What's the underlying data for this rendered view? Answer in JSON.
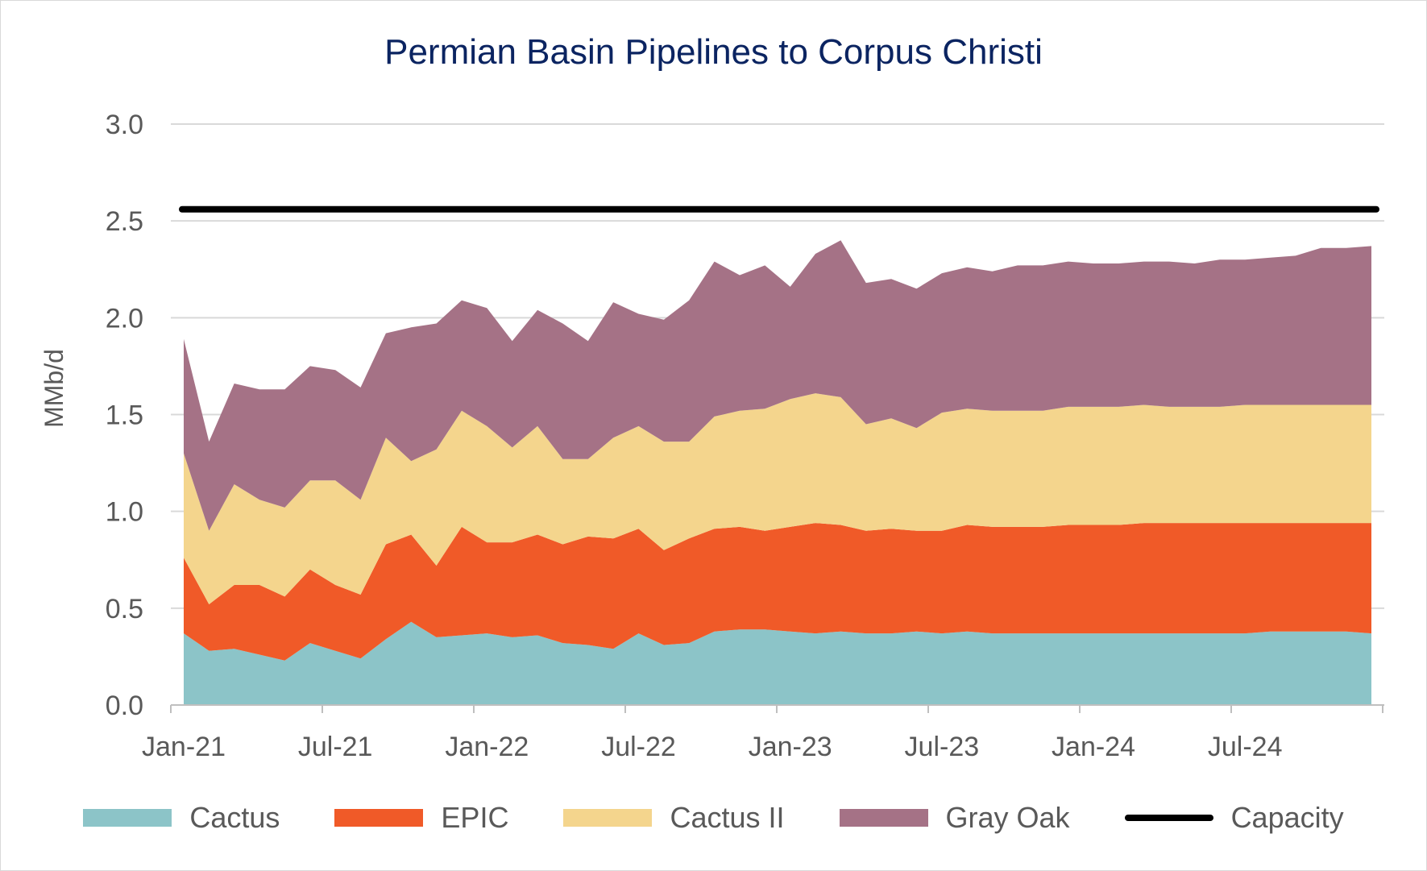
{
  "chart_data": {
    "type": "area",
    "stacked": true,
    "title": "Permian Basin Pipelines to Corpus Christi",
    "xlabel": "",
    "ylabel": "MMb/d",
    "ylim": [
      0,
      3.0
    ],
    "yticks": [
      "0.0",
      "0.5",
      "1.0",
      "1.5",
      "2.0",
      "2.5",
      "3.0"
    ],
    "x_tick_labels": [
      "Jan-21",
      "Jul-21",
      "Jan-22",
      "Jul-22",
      "Jan-23",
      "Jul-23",
      "Jan-24",
      "Jul-24"
    ],
    "x": [
      "2021-01",
      "2021-02",
      "2021-03",
      "2021-04",
      "2021-05",
      "2021-06",
      "2021-07",
      "2021-08",
      "2021-09",
      "2021-10",
      "2021-11",
      "2021-12",
      "2022-01",
      "2022-02",
      "2022-03",
      "2022-04",
      "2022-05",
      "2022-06",
      "2022-07",
      "2022-08",
      "2022-09",
      "2022-10",
      "2022-11",
      "2022-12",
      "2023-01",
      "2023-02",
      "2023-03",
      "2023-04",
      "2023-05",
      "2023-06",
      "2023-07",
      "2023-08",
      "2023-09",
      "2023-10",
      "2023-11",
      "2023-12",
      "2024-01",
      "2024-02",
      "2024-03",
      "2024-04",
      "2024-05",
      "2024-06",
      "2024-07",
      "2024-08",
      "2024-09",
      "2024-10",
      "2024-11",
      "2024-12"
    ],
    "grid": true,
    "legend_position": "bottom",
    "series": [
      {
        "name": "Cactus",
        "color": "#8cc4c8",
        "values": [
          0.37,
          0.28,
          0.29,
          0.26,
          0.23,
          0.32,
          0.28,
          0.24,
          0.34,
          0.43,
          0.35,
          0.36,
          0.37,
          0.35,
          0.36,
          0.32,
          0.31,
          0.29,
          0.37,
          0.31,
          0.32,
          0.38,
          0.39,
          0.39,
          0.38,
          0.37,
          0.38,
          0.37,
          0.37,
          0.38,
          0.37,
          0.38,
          0.37,
          0.37,
          0.37,
          0.37,
          0.37,
          0.37,
          0.37,
          0.37,
          0.37,
          0.37,
          0.37,
          0.38,
          0.38,
          0.38,
          0.38,
          0.37
        ]
      },
      {
        "name": "EPIC",
        "color": "#f05a28",
        "values": [
          0.39,
          0.24,
          0.33,
          0.36,
          0.33,
          0.38,
          0.34,
          0.33,
          0.49,
          0.45,
          0.37,
          0.56,
          0.47,
          0.49,
          0.52,
          0.51,
          0.56,
          0.57,
          0.54,
          0.49,
          0.54,
          0.53,
          0.53,
          0.51,
          0.54,
          0.57,
          0.55,
          0.53,
          0.54,
          0.52,
          0.53,
          0.55,
          0.55,
          0.55,
          0.55,
          0.56,
          0.56,
          0.56,
          0.57,
          0.57,
          0.57,
          0.57,
          0.57,
          0.56,
          0.56,
          0.56,
          0.56,
          0.57
        ]
      },
      {
        "name": "Cactus II",
        "color": "#f4d58d",
        "values": [
          0.54,
          0.38,
          0.52,
          0.44,
          0.46,
          0.46,
          0.54,
          0.49,
          0.55,
          0.38,
          0.6,
          0.6,
          0.6,
          0.49,
          0.56,
          0.44,
          0.4,
          0.52,
          0.53,
          0.56,
          0.5,
          0.58,
          0.6,
          0.63,
          0.66,
          0.67,
          0.66,
          0.55,
          0.57,
          0.53,
          0.61,
          0.6,
          0.6,
          0.6,
          0.6,
          0.61,
          0.61,
          0.61,
          0.61,
          0.6,
          0.6,
          0.6,
          0.61,
          0.61,
          0.61,
          0.61,
          0.61,
          0.61
        ]
      },
      {
        "name": "Gray Oak",
        "color": "#a57286",
        "values": [
          0.59,
          0.46,
          0.52,
          0.57,
          0.61,
          0.59,
          0.57,
          0.58,
          0.54,
          0.69,
          0.65,
          0.57,
          0.61,
          0.55,
          0.6,
          0.7,
          0.61,
          0.7,
          0.58,
          0.63,
          0.73,
          0.8,
          0.7,
          0.74,
          0.58,
          0.72,
          0.81,
          0.73,
          0.72,
          0.72,
          0.72,
          0.73,
          0.72,
          0.75,
          0.75,
          0.75,
          0.74,
          0.74,
          0.74,
          0.75,
          0.74,
          0.76,
          0.75,
          0.76,
          0.77,
          0.81,
          0.81,
          0.82
        ]
      }
    ],
    "capacity": {
      "name": "Capacity",
      "color": "#000000",
      "value": 2.56
    }
  }
}
